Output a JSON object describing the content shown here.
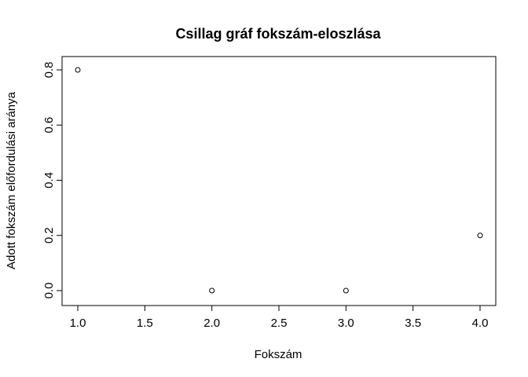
{
  "chart_data": {
    "type": "scatter",
    "title": "Csillag gráf fokszám-eloszlása",
    "xlabel": "Fokszám",
    "ylabel": "Adott fokszám előfordulási aránya",
    "x": [
      1,
      2,
      3,
      4
    ],
    "y": [
      0.8,
      0.0,
      0.0,
      0.2
    ],
    "xlim": [
      1.0,
      4.0
    ],
    "ylim": [
      0.0,
      0.8
    ],
    "x_ticks": [
      "1.0",
      "1.5",
      "2.0",
      "2.5",
      "3.0",
      "3.5",
      "4.0"
    ],
    "y_ticks": [
      "0.0",
      "0.2",
      "0.4",
      "0.6",
      "0.8"
    ],
    "grid": false,
    "marker": "open-circle"
  }
}
